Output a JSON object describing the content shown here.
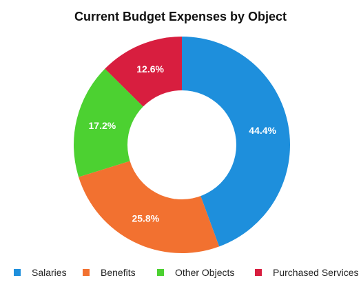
{
  "chart_data": {
    "type": "pie",
    "title": "Current Budget Expenses by Object",
    "categories": [
      "Salaries",
      "Benefits",
      "Other Objects",
      "Purchased Services"
    ],
    "values": [
      44.4,
      25.8,
      17.2,
      12.6
    ],
    "value_labels": [
      "44.4%",
      "25.8%",
      "17.2%",
      "12.6%"
    ],
    "unit": "%",
    "colors": [
      "#1E8FDC",
      "#F27130",
      "#4CD131",
      "#D81E3F"
    ],
    "donut": true,
    "legend": {
      "position": "bottom",
      "items": [
        "Salaries",
        "Benefits",
        "Other Objects",
        "Purchased Services"
      ]
    }
  }
}
